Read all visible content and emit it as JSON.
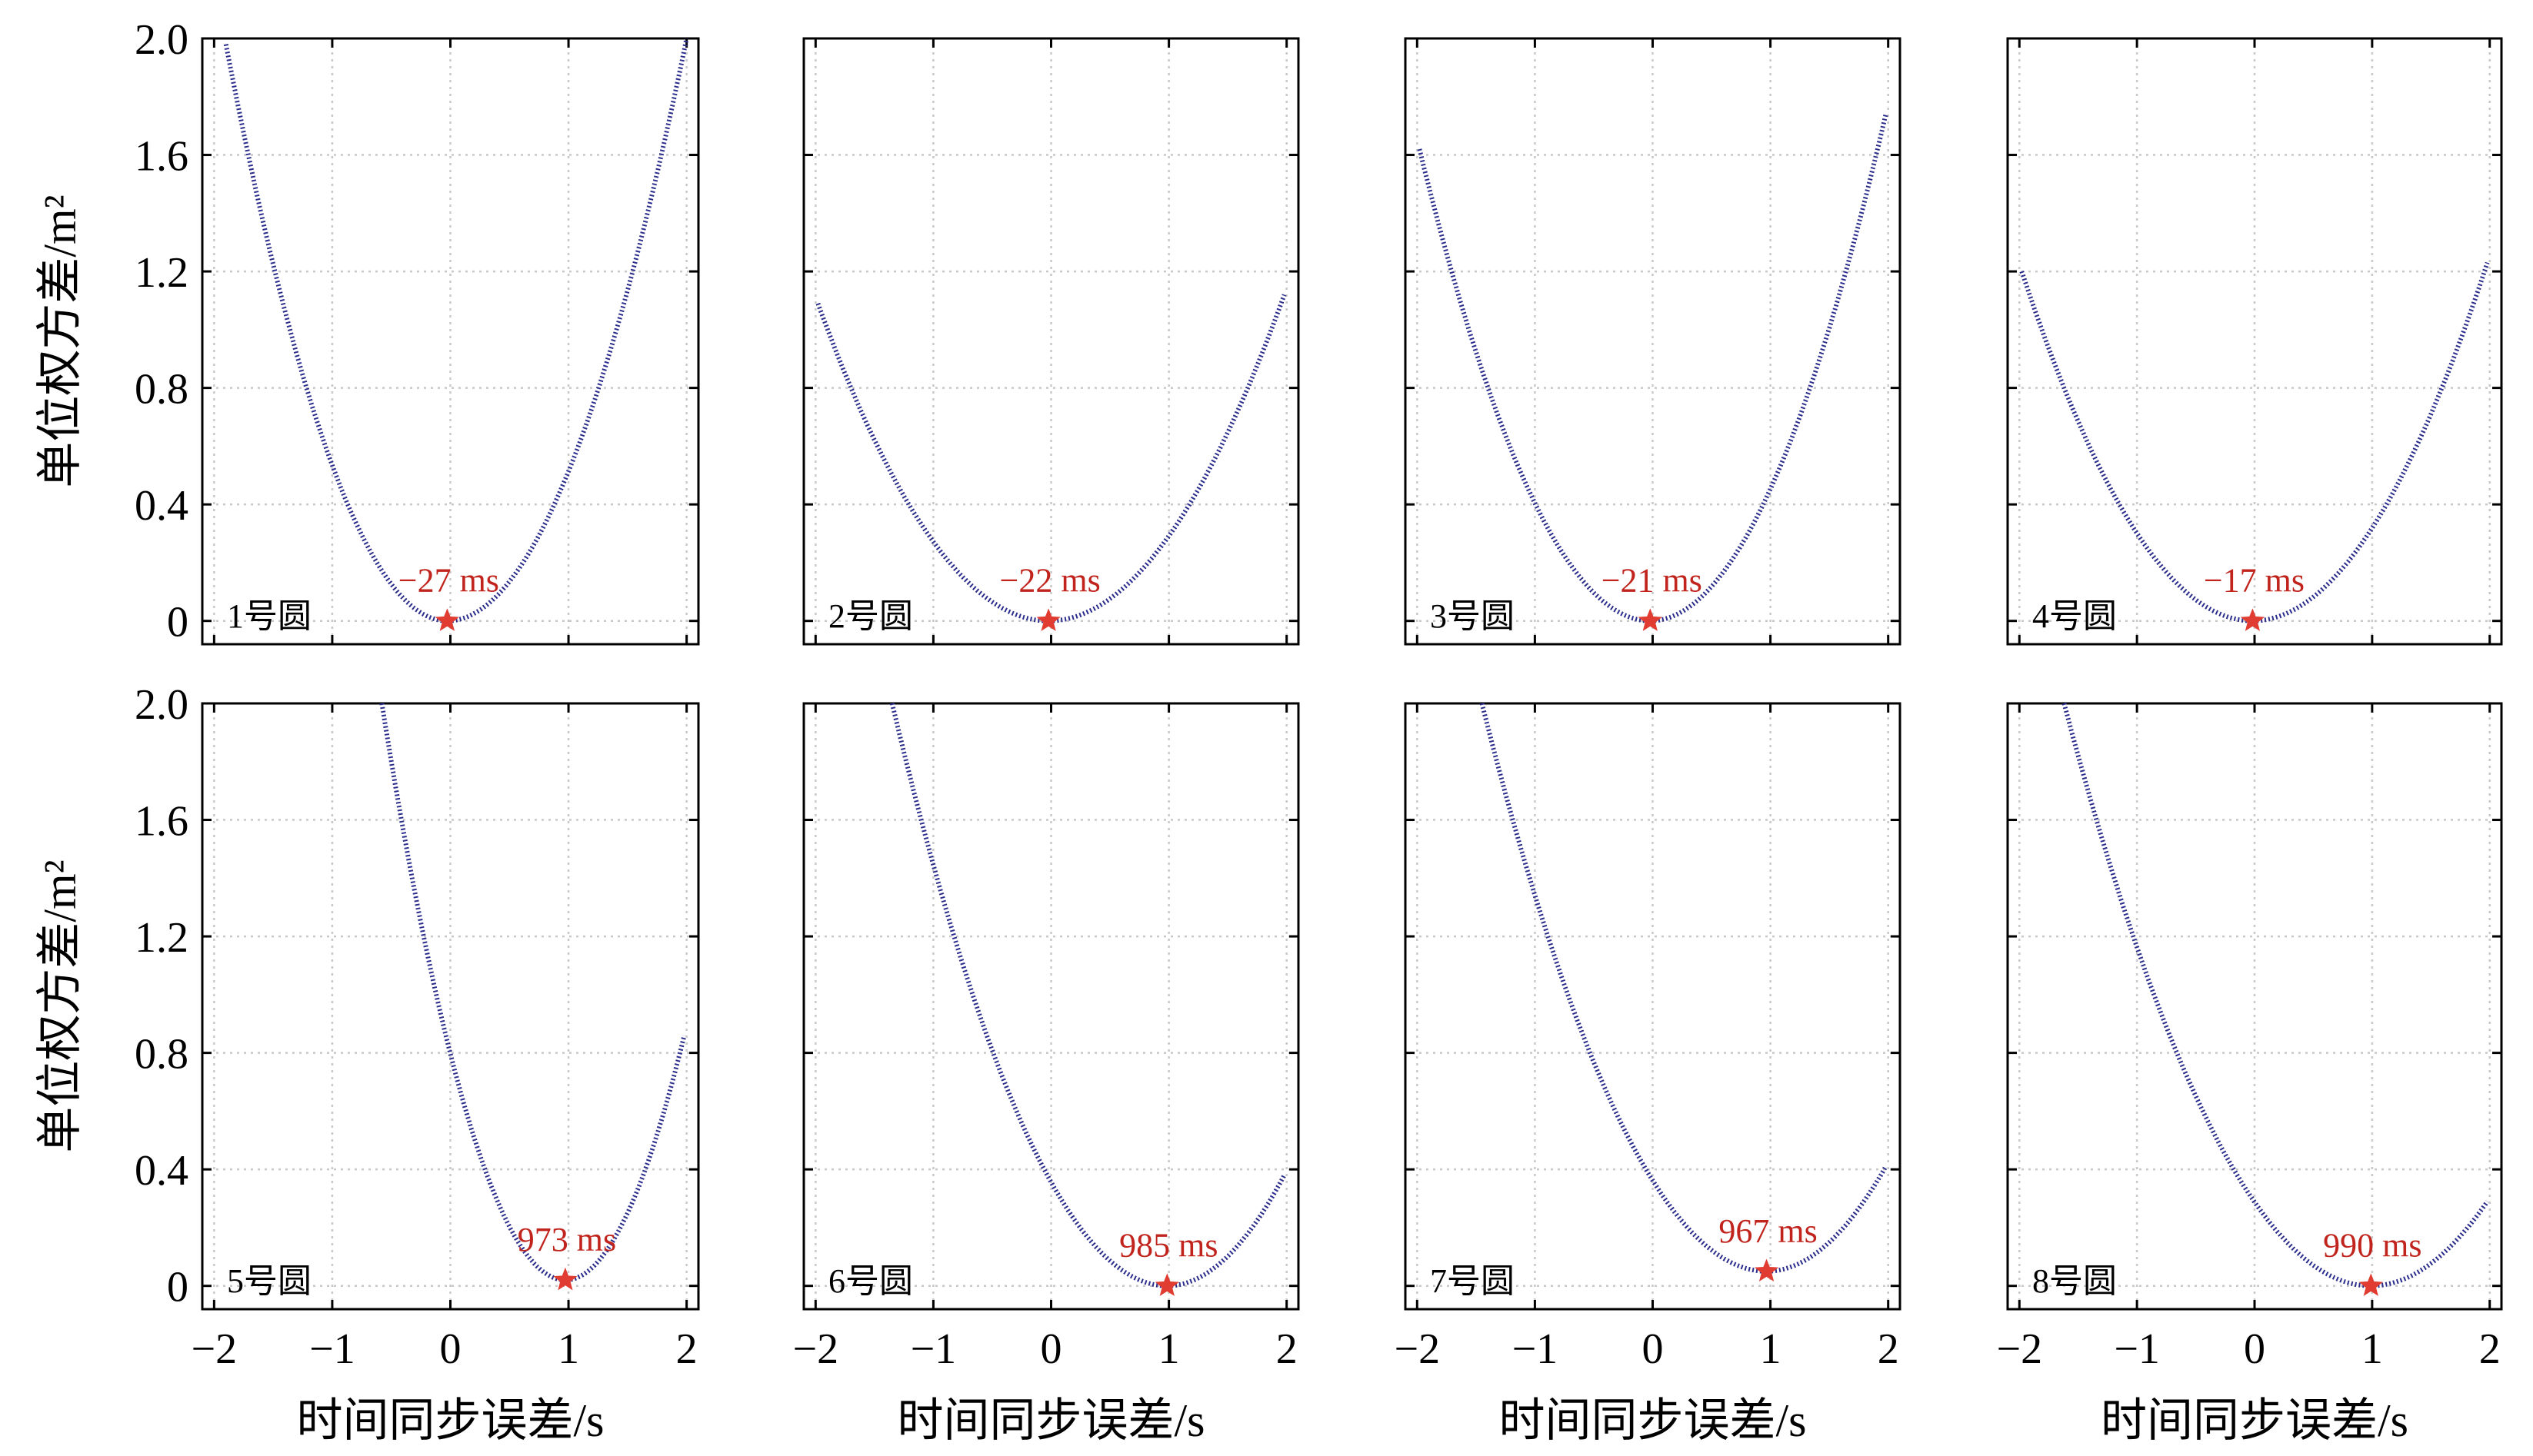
{
  "figure": {
    "ylabel": "单位权方差/m²",
    "xlabel": "时间同步误差/s",
    "x_ticks": [
      "−2",
      "−1",
      "0",
      "1",
      "2"
    ],
    "y_ticks": [
      "0",
      "0.4",
      "0.8",
      "1.2",
      "1.6",
      "2.0"
    ],
    "colors": {
      "curve": "#2b2d8c",
      "marker": "#e03c31",
      "annotation": "#c0241d",
      "grid": "#c8c8c8",
      "axis": "#000000"
    }
  },
  "chart_data": [
    {
      "type": "scatter",
      "label": "1号圆",
      "annotation": "−27 ms",
      "min_x": -0.027,
      "min_y": 0.0,
      "x_range": [
        -1.9,
        2.0
      ],
      "y_at_left": 1.98,
      "y_at_right": 2.0,
      "xlim": [
        -2.1,
        2.1
      ],
      "ylim": [
        -0.08,
        2.0
      ],
      "grid": true
    },
    {
      "type": "scatter",
      "label": "2号圆",
      "annotation": "−22 ms",
      "min_x": -0.022,
      "min_y": 0.0,
      "x_range": [
        -1.98,
        1.98
      ],
      "y_at_left": 1.09,
      "y_at_right": 1.12,
      "xlim": [
        -2.1,
        2.1
      ],
      "ylim": [
        -0.08,
        2.0
      ],
      "grid": true
    },
    {
      "type": "scatter",
      "label": "3号圆",
      "annotation": "−21 ms",
      "min_x": -0.021,
      "min_y": 0.0,
      "x_range": [
        -1.98,
        1.98
      ],
      "y_at_left": 1.62,
      "y_at_right": 1.74,
      "xlim": [
        -2.1,
        2.1
      ],
      "ylim": [
        -0.08,
        2.0
      ],
      "grid": true
    },
    {
      "type": "scatter",
      "label": "4号圆",
      "annotation": "−17 ms",
      "min_x": -0.017,
      "min_y": 0.0,
      "x_range": [
        -1.98,
        1.98
      ],
      "y_at_left": 1.2,
      "y_at_right": 1.23,
      "xlim": [
        -2.1,
        2.1
      ],
      "ylim": [
        -0.08,
        2.0
      ],
      "grid": true
    },
    {
      "type": "scatter",
      "label": "5号圆",
      "annotation": "973 ms",
      "min_x": 0.973,
      "min_y": 0.02,
      "x_range": [
        -0.58,
        1.98
      ],
      "y_at_left": 2.0,
      "y_at_right": 0.86,
      "xlim": [
        -2.1,
        2.1
      ],
      "ylim": [
        -0.08,
        2.0
      ],
      "grid": true
    },
    {
      "type": "scatter",
      "label": "6号圆",
      "annotation": "985 ms",
      "min_x": 0.985,
      "min_y": 0.0,
      "x_range": [
        -1.35,
        1.98
      ],
      "y_at_left": 2.0,
      "y_at_right": 0.38,
      "xlim": [
        -2.1,
        2.1
      ],
      "ylim": [
        -0.08,
        2.0
      ],
      "grid": true
    },
    {
      "type": "scatter",
      "label": "7号圆",
      "annotation": "967 ms",
      "min_x": 0.967,
      "min_y": 0.05,
      "x_range": [
        -1.45,
        1.98
      ],
      "y_at_left": 2.0,
      "y_at_right": 0.41,
      "xlim": [
        -2.1,
        2.1
      ],
      "ylim": [
        -0.08,
        2.0
      ],
      "grid": true
    },
    {
      "type": "scatter",
      "label": "8号圆",
      "annotation": "990 ms",
      "min_x": 0.99,
      "min_y": 0.0,
      "x_range": [
        -1.62,
        1.98
      ],
      "y_at_left": 2.0,
      "y_at_right": 0.29,
      "xlim": [
        -2.1,
        2.1
      ],
      "ylim": [
        -0.08,
        2.0
      ],
      "grid": true
    }
  ]
}
